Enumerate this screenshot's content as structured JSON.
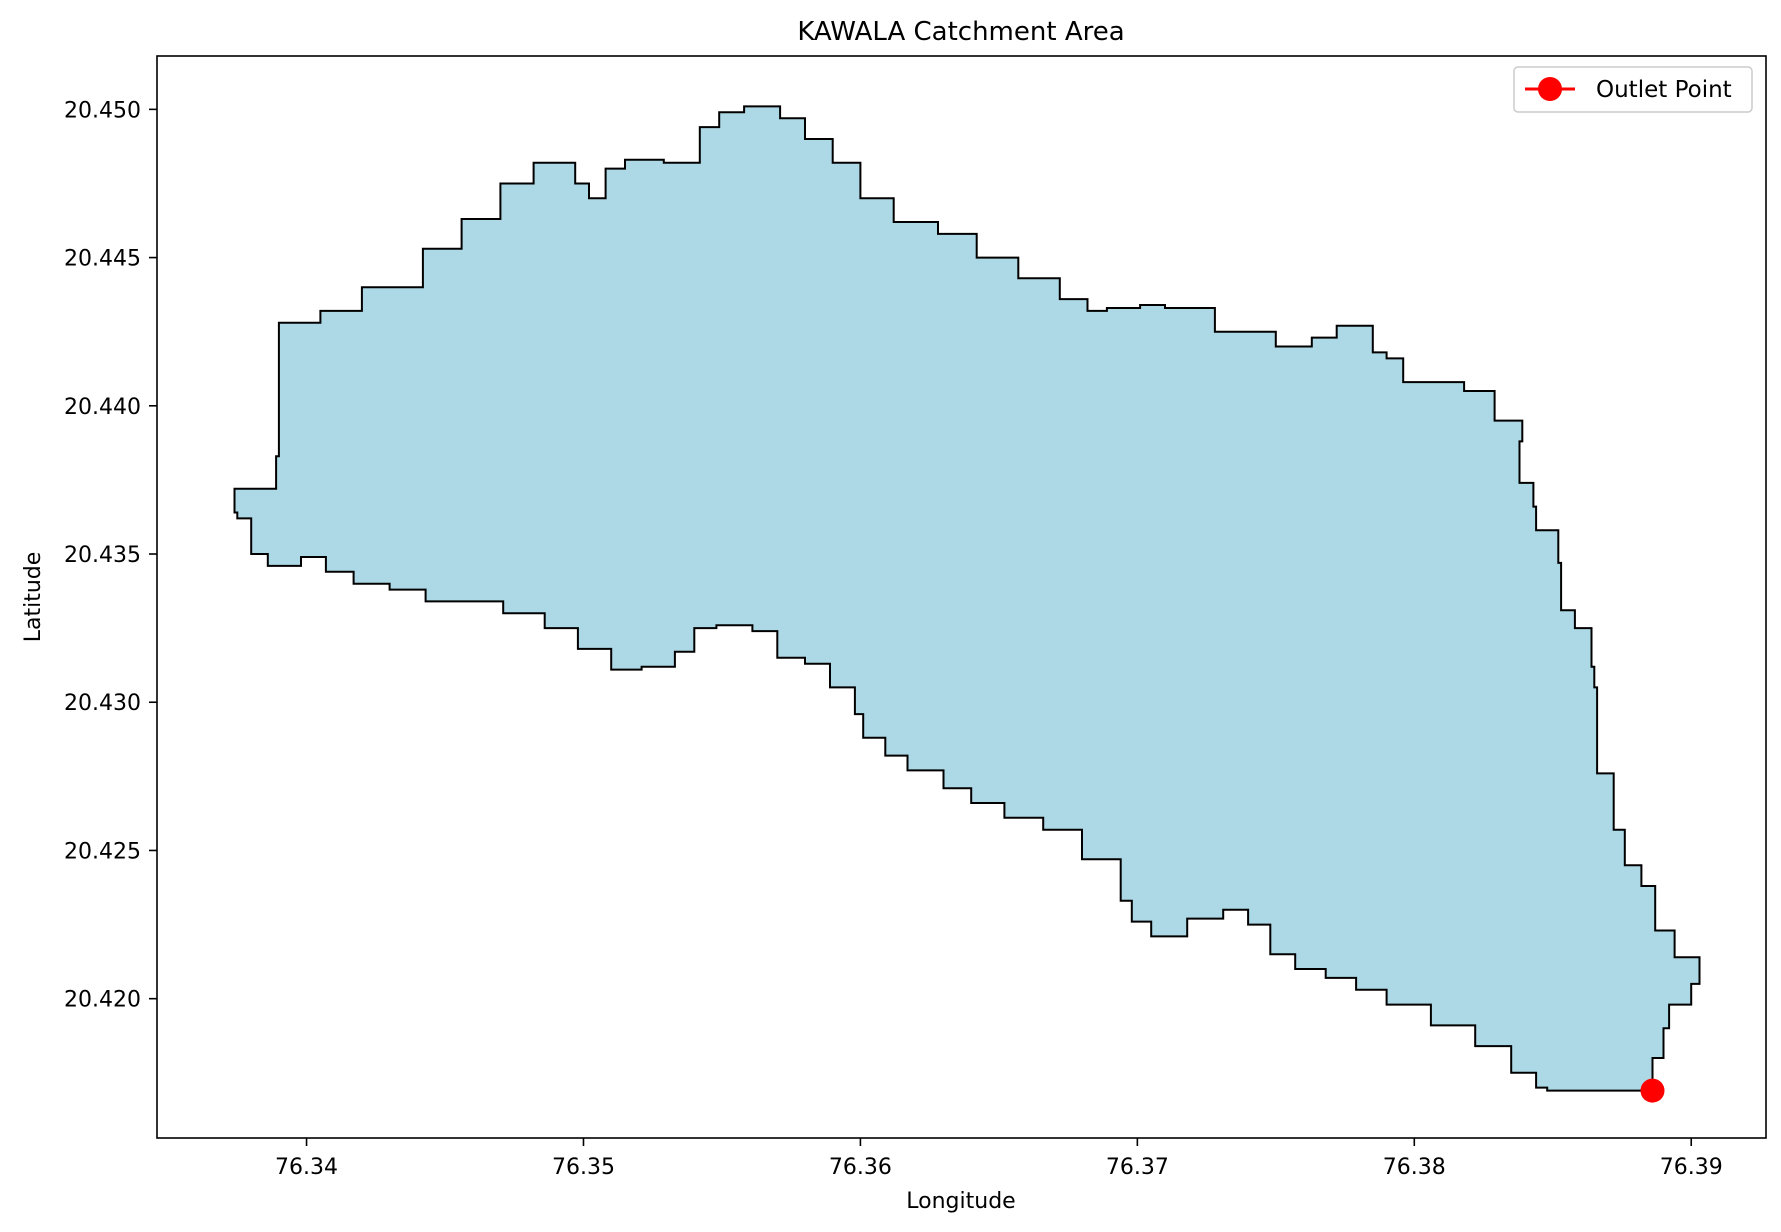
{
  "chart_data": {
    "type": "area",
    "title": "KAWALA Catchment Area",
    "xlabel": "Longitude",
    "ylabel": "Latitude",
    "xlim": [
      76.3346,
      76.3927
    ],
    "ylim": [
      20.4153,
      20.4518
    ],
    "x_ticks": [
      76.34,
      76.35,
      76.36,
      76.37,
      76.38,
      76.39
    ],
    "y_ticks": [
      20.42,
      20.425,
      20.43,
      20.435,
      20.44,
      20.445,
      20.45
    ],
    "x_tick_labels": [
      "76.34",
      "76.35",
      "76.36",
      "76.37",
      "76.38",
      "76.39"
    ],
    "y_tick_labels": [
      "20.420",
      "20.425",
      "20.430",
      "20.435",
      "20.440",
      "20.445",
      "20.450"
    ],
    "grid": false,
    "legend": {
      "position": "upper-right",
      "entries": [
        "Outlet Point"
      ]
    },
    "catchment": {
      "fill_color": "#add8e6",
      "edge_color": "#000000",
      "boundary": [
        [
          76.3374,
          20.4372
        ],
        [
          76.3389,
          20.4383
        ],
        [
          76.339,
          20.4428
        ],
        [
          76.3405,
          20.4432
        ],
        [
          76.342,
          20.444
        ],
        [
          76.3442,
          20.4453
        ],
        [
          76.3456,
          20.4463
        ],
        [
          76.347,
          20.4475
        ],
        [
          76.3482,
          20.4482
        ],
        [
          76.3492,
          20.4482
        ],
        [
          76.3497,
          20.4475
        ],
        [
          76.3502,
          20.447
        ],
        [
          76.3508,
          20.448
        ],
        [
          76.3515,
          20.4483
        ],
        [
          76.3529,
          20.4482
        ],
        [
          76.3542,
          20.4494
        ],
        [
          76.3549,
          20.4499
        ],
        [
          76.3558,
          20.4501
        ],
        [
          76.3571,
          20.4497
        ],
        [
          76.358,
          20.449
        ],
        [
          76.359,
          20.4482
        ],
        [
          76.36,
          20.447
        ],
        [
          76.3612,
          20.4462
        ],
        [
          76.3628,
          20.4458
        ],
        [
          76.3642,
          20.445
        ],
        [
          76.3657,
          20.4443
        ],
        [
          76.3672,
          20.4436
        ],
        [
          76.3682,
          20.4432
        ],
        [
          76.3689,
          20.4433
        ],
        [
          76.3701,
          20.4434
        ],
        [
          76.371,
          20.4433
        ],
        [
          76.3728,
          20.4425
        ],
        [
          76.375,
          20.442
        ],
        [
          76.3763,
          20.4423
        ],
        [
          76.3772,
          20.4427
        ],
        [
          76.3785,
          20.4418
        ],
        [
          76.379,
          20.4416
        ],
        [
          76.3796,
          20.4408
        ],
        [
          76.3805,
          20.4408
        ],
        [
          76.3818,
          20.4405
        ],
        [
          76.3829,
          20.4395
        ],
        [
          76.3839,
          20.4388
        ],
        [
          76.3838,
          20.4374
        ],
        [
          76.3843,
          20.4366
        ],
        [
          76.3844,
          20.4358
        ],
        [
          76.3852,
          20.4347
        ],
        [
          76.3853,
          20.4331
        ],
        [
          76.3858,
          20.4325
        ],
        [
          76.3864,
          20.4312
        ],
        [
          76.3865,
          20.4305
        ],
        [
          76.3866,
          20.4295
        ],
        [
          76.3866,
          20.4276
        ],
        [
          76.3872,
          20.4257
        ],
        [
          76.3876,
          20.4245
        ],
        [
          76.3882,
          20.4238
        ],
        [
          76.3887,
          20.4223
        ],
        [
          76.3894,
          20.4214
        ],
        [
          76.3903,
          20.4205
        ],
        [
          76.39,
          20.4198
        ],
        [
          76.3892,
          20.419
        ],
        [
          76.389,
          20.418
        ],
        [
          76.3886,
          20.4168
        ],
        [
          76.3887,
          20.4169
        ],
        [
          76.3874,
          20.4169
        ],
        [
          76.386,
          20.4169
        ],
        [
          76.3848,
          20.417
        ],
        [
          76.3844,
          20.4175
        ],
        [
          76.3835,
          20.4184
        ],
        [
          76.3822,
          20.4191
        ],
        [
          76.3806,
          20.4198
        ],
        [
          76.379,
          20.4203
        ],
        [
          76.3779,
          20.4207
        ],
        [
          76.3768,
          20.421
        ],
        [
          76.3757,
          20.4215
        ],
        [
          76.3748,
          20.4225
        ],
        [
          76.374,
          20.423
        ],
        [
          76.3731,
          20.4227
        ],
        [
          76.3718,
          20.4221
        ],
        [
          76.3705,
          20.4226
        ],
        [
          76.3698,
          20.4233
        ],
        [
          76.3694,
          20.4247
        ],
        [
          76.368,
          20.4257
        ],
        [
          76.3666,
          20.4261
        ],
        [
          76.3652,
          20.4266
        ],
        [
          76.364,
          20.4271
        ],
        [
          76.363,
          20.4277
        ],
        [
          76.3617,
          20.4282
        ],
        [
          76.3609,
          20.4288
        ],
        [
          76.3601,
          20.4296
        ],
        [
          76.3598,
          20.4305
        ],
        [
          76.3589,
          20.4313
        ],
        [
          76.358,
          20.4315
        ],
        [
          76.357,
          20.4324
        ],
        [
          76.3561,
          20.4326
        ],
        [
          76.3548,
          20.4325
        ],
        [
          76.354,
          20.4317
        ],
        [
          76.3533,
          20.4312
        ],
        [
          76.3521,
          20.4311
        ],
        [
          76.351,
          20.4318
        ],
        [
          76.3498,
          20.4325
        ],
        [
          76.3486,
          20.433
        ],
        [
          76.3471,
          20.4334
        ],
        [
          76.3454,
          20.4334
        ],
        [
          76.3443,
          20.4338
        ],
        [
          76.343,
          20.434
        ],
        [
          76.3417,
          20.4344
        ],
        [
          76.3407,
          20.4349
        ],
        [
          76.3398,
          20.4346
        ],
        [
          76.3386,
          20.435
        ],
        [
          76.338,
          20.4362
        ],
        [
          76.3375,
          20.4364
        ],
        [
          76.3374,
          20.4372
        ]
      ]
    },
    "outlet_point": {
      "x": 76.3886,
      "y": 20.4169,
      "color": "#ff0000"
    }
  }
}
